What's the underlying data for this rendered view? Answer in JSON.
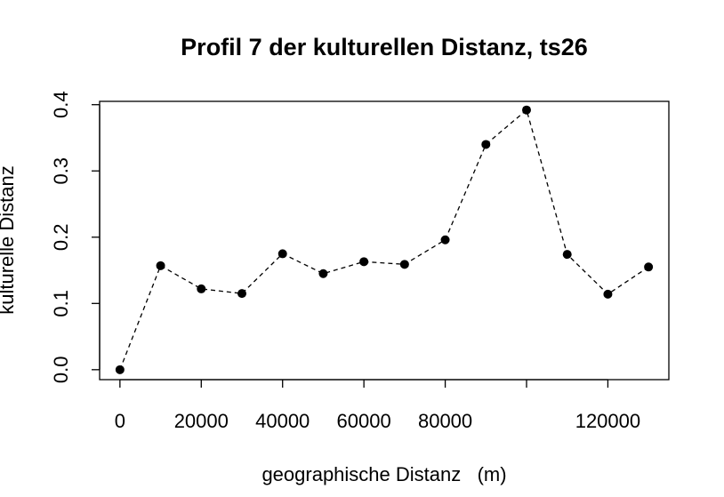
{
  "chart_data": {
    "type": "line",
    "title": "Profil 7 der kulturellen Distanz, ts26",
    "xlabel": "geographische Distanz   (m)",
    "ylabel": "kulturelle Distanz",
    "xlim": [
      -5000,
      135000
    ],
    "ylim": [
      -0.015,
      0.405
    ],
    "x_ticks": [
      0,
      20000,
      40000,
      60000,
      80000,
      100000,
      120000
    ],
    "x_tick_labels": [
      "0",
      "20000",
      "40000",
      "60000",
      "80000",
      "",
      "120000"
    ],
    "y_ticks": [
      0.0,
      0.1,
      0.2,
      0.3,
      0.4
    ],
    "y_tick_labels": [
      "0.0",
      "0.1",
      "0.2",
      "0.3",
      "0.4"
    ],
    "grid": false,
    "line_style": "dashed",
    "marker": "filled-circle",
    "color": "#000000",
    "series": [
      {
        "x": [
          0,
          10000,
          20000,
          30000,
          40000,
          50000,
          60000,
          70000,
          80000,
          90000,
          100000,
          110000,
          120000,
          130000
        ],
        "y": [
          0.0,
          0.157,
          0.122,
          0.115,
          0.175,
          0.145,
          0.163,
          0.159,
          0.196,
          0.34,
          0.392,
          0.174,
          0.114,
          0.155
        ]
      }
    ]
  }
}
